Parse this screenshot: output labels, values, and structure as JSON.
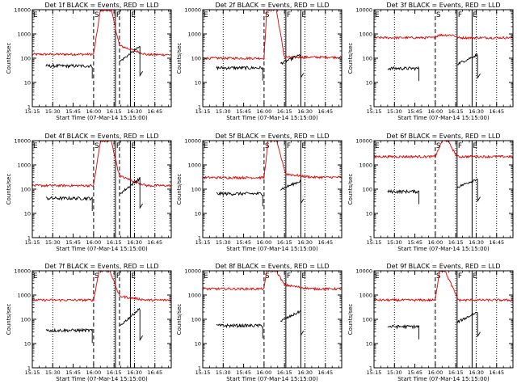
{
  "chart_data": {
    "type": "line",
    "layout": "3x3 grid",
    "xlabel": "Start Time (07-Mar-14 15:15:00)",
    "ylabel": "Counts/sec",
    "yscale": "log",
    "ylim": [
      1,
      10000
    ],
    "yticks": [
      "1",
      "10",
      "100",
      "1000",
      "10000"
    ],
    "xticks": [
      "15:15",
      "15:30",
      "15:45",
      "16:00",
      "16:15",
      "16:30",
      "16:45"
    ],
    "xlim_min": [
      0,
      102
    ],
    "colors": {
      "events": "#000000",
      "lld": "#e00000"
    },
    "marker_labels": [
      "E",
      "S",
      "F",
      "E"
    ],
    "panels": [
      {
        "title": "Det 1f BLACK = Events, RED = LLD",
        "markers": [
          {
            "t": 0,
            "label": "E",
            "style": "dotted"
          },
          {
            "t": 15,
            "label": "",
            "style": "dotted"
          },
          {
            "t": 45,
            "label": "S",
            "style": "dashed"
          },
          {
            "t": 60,
            "label": "",
            "style": "dotted"
          },
          {
            "t": 61,
            "label": "F",
            "style": "solid"
          },
          {
            "t": 64,
            "label": "",
            "style": "dashed"
          },
          {
            "t": 72,
            "label": "E",
            "style": "solid"
          },
          {
            "t": 75,
            "label": "",
            "style": "dotted"
          },
          {
            "t": 90,
            "label": "",
            "style": "dotted"
          }
        ],
        "events": {
          "base": 48,
          "seg1": [
            10,
            44
          ],
          "seg2": [
            64,
            79
          ],
          "peak": 300
        },
        "lld": {
          "base": 145,
          "peak": 9500,
          "rise": [
            45,
            50
          ],
          "fall": [
            58,
            64
          ],
          "post": 330,
          "post_end": 140
        }
      },
      {
        "title": "Det 2f BLACK = Events, RED = LLD",
        "markers": [
          {
            "t": 0,
            "label": "E",
            "style": "dotted"
          },
          {
            "t": 15,
            "label": "",
            "style": "dotted"
          },
          {
            "t": 45,
            "label": "S",
            "style": "dashed"
          },
          {
            "t": 60,
            "label": "",
            "style": "dotted"
          },
          {
            "t": 61,
            "label": "F",
            "style": "solid"
          },
          {
            "t": 72,
            "label": "E",
            "style": "solid"
          },
          {
            "t": 75,
            "label": "",
            "style": "dotted"
          },
          {
            "t": 90,
            "label": "",
            "style": "dotted"
          }
        ],
        "events": {
          "base": 40,
          "seg1": [
            10,
            44
          ],
          "seg2": [
            57,
            72
          ],
          "peak": 140
        },
        "lld": {
          "base": 100,
          "peak": 10000,
          "rise": [
            45,
            47
          ],
          "fall": [
            54,
            60
          ],
          "post": 110,
          "post_end": 110
        }
      },
      {
        "title": "Det 3f BLACK = Events, RED = LLD",
        "markers": [
          {
            "t": 0,
            "label": "E",
            "style": "dotted"
          },
          {
            "t": 15,
            "label": "",
            "style": "dotted"
          },
          {
            "t": 45,
            "label": "S",
            "style": "dashed"
          },
          {
            "t": 60,
            "label": "",
            "style": "dotted"
          },
          {
            "t": 61,
            "label": "F",
            "style": "solid"
          },
          {
            "t": 72,
            "label": "E",
            "style": "solid"
          },
          {
            "t": 75,
            "label": "",
            "style": "dotted"
          },
          {
            "t": 90,
            "label": "",
            "style": "dotted"
          }
        ],
        "events": {
          "base": 38,
          "seg1": [
            10,
            33
          ],
          "seg2": [
            61,
            76
          ],
          "peak": 140
        },
        "lld": {
          "base": 700,
          "peak": 900,
          "rise": [
            45,
            47
          ],
          "fall": [
            58,
            62
          ],
          "post": 700,
          "post_end": 700
        }
      },
      {
        "title": "Det 4f BLACK = Events, RED = LLD",
        "markers": [
          {
            "t": 0,
            "label": "E",
            "style": "dotted"
          },
          {
            "t": 15,
            "label": "",
            "style": "dotted"
          },
          {
            "t": 45,
            "label": "S",
            "style": "dashed"
          },
          {
            "t": 60,
            "label": "",
            "style": "dotted"
          },
          {
            "t": 61,
            "label": "F",
            "style": "solid"
          },
          {
            "t": 64,
            "label": "",
            "style": "dashed"
          },
          {
            "t": 72,
            "label": "E",
            "style": "solid"
          },
          {
            "t": 75,
            "label": "",
            "style": "dotted"
          },
          {
            "t": 90,
            "label": "",
            "style": "dotted"
          }
        ],
        "events": {
          "base": 42,
          "seg1": [
            10,
            44
          ],
          "seg2": [
            64,
            79
          ],
          "peak": 280
        },
        "lld": {
          "base": 140,
          "peak": 9500,
          "rise": [
            45,
            50
          ],
          "fall": [
            58,
            64
          ],
          "post": 350,
          "post_end": 140
        }
      },
      {
        "title": "Det 5f BLACK = Events, RED = LLD",
        "markers": [
          {
            "t": 0,
            "label": "E",
            "style": "dotted"
          },
          {
            "t": 15,
            "label": "",
            "style": "dotted"
          },
          {
            "t": 45,
            "label": "S",
            "style": "dashed"
          },
          {
            "t": 60,
            "label": "",
            "style": "dotted"
          },
          {
            "t": 61,
            "label": "F",
            "style": "solid"
          },
          {
            "t": 72,
            "label": "E",
            "style": "solid"
          },
          {
            "t": 75,
            "label": "",
            "style": "dotted"
          },
          {
            "t": 90,
            "label": "",
            "style": "dotted"
          }
        ],
        "events": {
          "base": 65,
          "seg1": [
            10,
            44
          ],
          "seg2": [
            57,
            72
          ],
          "peak": 220
        },
        "lld": {
          "base": 300,
          "peak": 10000,
          "rise": [
            45,
            48
          ],
          "fall": [
            54,
            61
          ],
          "post": 420,
          "post_end": 310
        }
      },
      {
        "title": "Det 6f BLACK = Events, RED = LLD",
        "markers": [
          {
            "t": 0,
            "label": "E",
            "style": "dotted"
          },
          {
            "t": 15,
            "label": "",
            "style": "dotted"
          },
          {
            "t": 45,
            "label": "S",
            "style": "dashed"
          },
          {
            "t": 60,
            "label": "",
            "style": "dotted"
          },
          {
            "t": 61,
            "label": "F",
            "style": "solid"
          },
          {
            "t": 72,
            "label": "E",
            "style": "solid"
          },
          {
            "t": 75,
            "label": "",
            "style": "dotted"
          },
          {
            "t": 90,
            "label": "",
            "style": "dotted"
          }
        ],
        "events": {
          "base": 80,
          "seg1": [
            10,
            33
          ],
          "seg2": [
            61,
            76
          ],
          "peak": 270
        },
        "lld": {
          "base": 2200,
          "peak": 10000,
          "rise": [
            45,
            50
          ],
          "fall": [
            54,
            61
          ],
          "post": 2200,
          "post_end": 2200
        }
      },
      {
        "title": "Det 7f BLACK = Events, RED = LLD",
        "markers": [
          {
            "t": 0,
            "label": "E",
            "style": "dotted"
          },
          {
            "t": 15,
            "label": "",
            "style": "dotted"
          },
          {
            "t": 45,
            "label": "S",
            "style": "dashed"
          },
          {
            "t": 60,
            "label": "",
            "style": "dotted"
          },
          {
            "t": 61,
            "label": "F",
            "style": "solid"
          },
          {
            "t": 64,
            "label": "",
            "style": "dashed"
          },
          {
            "t": 72,
            "label": "E",
            "style": "solid"
          },
          {
            "t": 75,
            "label": "",
            "style": "dotted"
          },
          {
            "t": 90,
            "label": "",
            "style": "dotted"
          }
        ],
        "events": {
          "base": 35,
          "seg1": [
            10,
            44
          ],
          "seg2": [
            64,
            79
          ],
          "peak": 280
        },
        "lld": {
          "base": 620,
          "peak": 10000,
          "rise": [
            45,
            49
          ],
          "fall": [
            57,
            64
          ],
          "post": 900,
          "post_end": 620
        }
      },
      {
        "title": "Det 8f BLACK = Events, RED = LLD",
        "markers": [
          {
            "t": 0,
            "label": "E",
            "style": "dotted"
          },
          {
            "t": 15,
            "label": "",
            "style": "dotted"
          },
          {
            "t": 45,
            "label": "S",
            "style": "dashed"
          },
          {
            "t": 60,
            "label": "",
            "style": "dotted"
          },
          {
            "t": 61,
            "label": "F",
            "style": "solid"
          },
          {
            "t": 72,
            "label": "E",
            "style": "solid"
          },
          {
            "t": 75,
            "label": "",
            "style": "dotted"
          },
          {
            "t": 90,
            "label": "",
            "style": "dotted"
          }
        ],
        "events": {
          "base": 55,
          "seg1": [
            10,
            44
          ],
          "seg2": [
            57,
            72
          ],
          "peak": 220
        },
        "lld": {
          "base": 1800,
          "peak": 10000,
          "rise": [
            45,
            47
          ],
          "fall": [
            54,
            60
          ],
          "post": 2600,
          "post_end": 1800
        }
      },
      {
        "title": "Det 9f BLACK = Events, RED = LLD",
        "markers": [
          {
            "t": 0,
            "label": "E",
            "style": "dotted"
          },
          {
            "t": 15,
            "label": "",
            "style": "dotted"
          },
          {
            "t": 45,
            "label": "S",
            "style": "dashed"
          },
          {
            "t": 60,
            "label": "",
            "style": "dotted"
          },
          {
            "t": 61,
            "label": "F",
            "style": "solid"
          },
          {
            "t": 72,
            "label": "E",
            "style": "solid"
          },
          {
            "t": 75,
            "label": "",
            "style": "dotted"
          },
          {
            "t": 90,
            "label": "",
            "style": "dotted"
          }
        ],
        "events": {
          "base": 50,
          "seg1": [
            10,
            33
          ],
          "seg2": [
            61,
            76
          ],
          "peak": 200
        },
        "lld": {
          "base": 620,
          "peak": 10000,
          "rise": [
            45,
            48
          ],
          "fall": [
            52,
            62
          ],
          "post": 620,
          "post_end": 620
        }
      }
    ]
  }
}
